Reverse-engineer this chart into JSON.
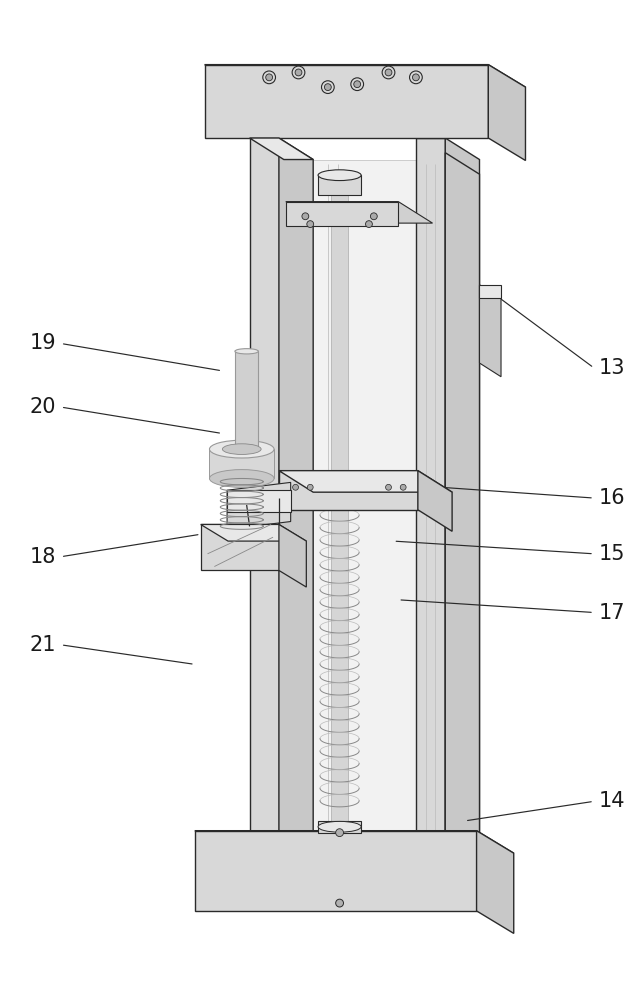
{
  "fig_width": 6.42,
  "fig_height": 10.0,
  "dpi": 100,
  "bg_color": "#ffffff",
  "line_color": "#2a2a2a",
  "annotations": [
    [
      "19",
      55,
      340,
      220,
      368
    ],
    [
      "20",
      55,
      405,
      220,
      432
    ],
    [
      "18",
      55,
      558,
      198,
      535
    ],
    [
      "21",
      55,
      648,
      192,
      668
    ],
    [
      "13",
      600,
      365,
      492,
      285
    ],
    [
      "16",
      600,
      498,
      415,
      485
    ],
    [
      "15",
      600,
      555,
      395,
      542
    ],
    [
      "17",
      600,
      615,
      400,
      602
    ],
    [
      "14",
      600,
      808,
      468,
      828
    ]
  ]
}
